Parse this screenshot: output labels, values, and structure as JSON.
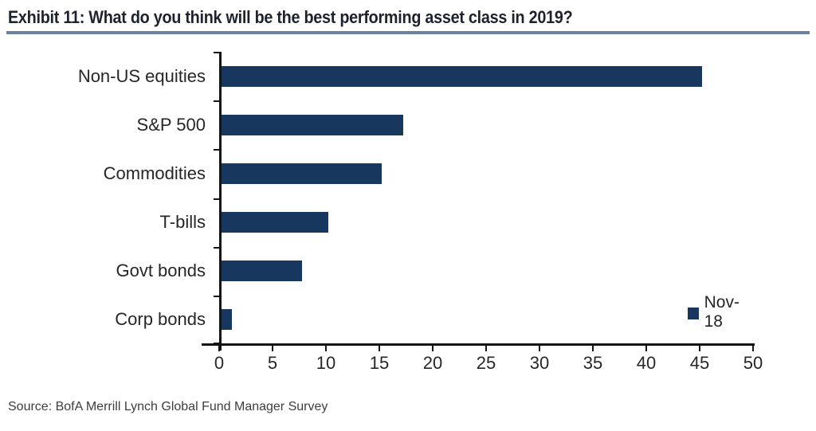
{
  "title": "Exhibit 11: What do you think will be the best performing asset class in 2019?",
  "source": "Source: BofA Merrill Lynch Global Fund Manager Survey",
  "legend": {
    "label": "Nov-18"
  },
  "colors": {
    "bar": "#17375E",
    "axis": "#151515",
    "label": "#262626",
    "title_underline": "#6b819e"
  },
  "chart_data": {
    "type": "bar",
    "orientation": "horizontal",
    "title": "Exhibit 11: What do you think will be the best performing asset class in 2019?",
    "categories": [
      "Non-US equities",
      "S&P 500",
      "Commodities",
      "T-bills",
      "Govt bonds",
      "Corp bonds"
    ],
    "series": [
      {
        "name": "Nov-18",
        "values": [
          45,
          17,
          15,
          10,
          7.5,
          1
        ]
      }
    ],
    "xlabel": "",
    "ylabel": "",
    "xlim": [
      0,
      50
    ],
    "xticks": [
      0,
      5,
      10,
      15,
      20,
      25,
      30,
      35,
      40,
      45,
      50
    ],
    "grid": false,
    "legend_position": "lower-right",
    "bar_color": "#17375E"
  }
}
